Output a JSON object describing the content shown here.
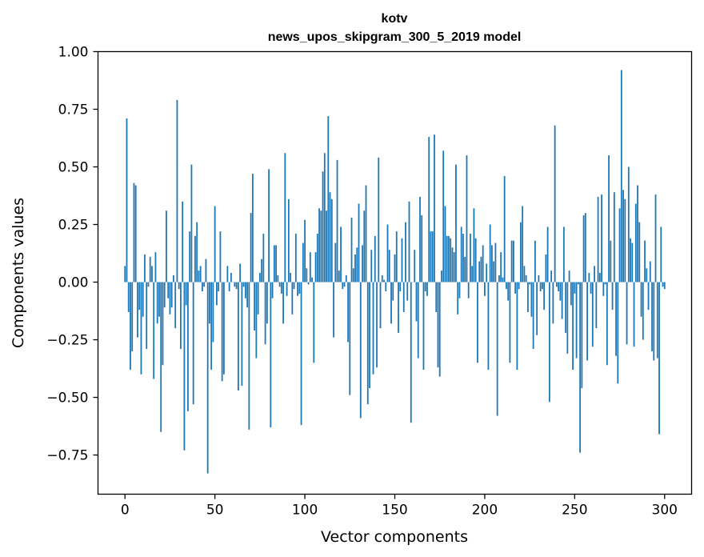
{
  "chart_data": {
    "type": "bar",
    "title": "kotv",
    "subtitle": "news_upos_skipgram_300_5_2019 model",
    "xlabel": "Vector components",
    "ylabel": "Components values",
    "xlim": [
      -15,
      315
    ],
    "ylim": [
      -0.92,
      1.0
    ],
    "xticks": [
      0,
      50,
      100,
      150,
      200,
      250,
      300
    ],
    "yticks": [
      -0.75,
      -0.5,
      -0.25,
      0.0,
      0.25,
      0.5,
      0.75,
      1.0
    ],
    "xtick_labels": [
      "0",
      "50",
      "100",
      "150",
      "200",
      "250",
      "300"
    ],
    "ytick_labels": [
      "−0.75",
      "−0.50",
      "−0.25",
      "0.00",
      "0.25",
      "0.50",
      "0.75",
      "1.00"
    ],
    "bar_color": "#1f77b4",
    "values": [
      0.07,
      0.71,
      -0.13,
      -0.38,
      -0.3,
      0.43,
      0.42,
      -0.24,
      -0.12,
      -0.4,
      -0.15,
      0.12,
      -0.29,
      -0.02,
      0.11,
      0.07,
      -0.42,
      0.13,
      -0.18,
      -0.15,
      -0.65,
      -0.36,
      -0.11,
      0.31,
      -0.07,
      -0.14,
      -0.11,
      0.03,
      -0.2,
      0.79,
      -0.03,
      -0.29,
      0.35,
      -0.73,
      -0.1,
      -0.56,
      0.22,
      0.51,
      -0.53,
      0.2,
      0.26,
      0.05,
      0.07,
      -0.04,
      -0.02,
      0.1,
      -0.83,
      -0.18,
      -0.38,
      -0.26,
      0.33,
      -0.1,
      -0.04,
      0.22,
      -0.43,
      -0.4,
      0.0,
      0.07,
      -0.04,
      0.04,
      0.0,
      -0.02,
      -0.03,
      -0.47,
      0.08,
      -0.45,
      -0.02,
      -0.07,
      -0.11,
      -0.64,
      0.3,
      0.47,
      -0.21,
      -0.33,
      -0.14,
      0.04,
      0.1,
      0.21,
      -0.27,
      -0.18,
      0.49,
      -0.63,
      -0.07,
      0.16,
      0.16,
      0.03,
      -0.02,
      -0.05,
      -0.18,
      0.56,
      -0.06,
      0.36,
      0.04,
      -0.14,
      -0.03,
      0.21,
      -0.06,
      -0.05,
      -0.62,
      0.17,
      0.27,
      0.06,
      -0.01,
      0.13,
      0.02,
      -0.35,
      0.13,
      0.21,
      0.32,
      0.31,
      0.48,
      0.56,
      0.31,
      0.72,
      0.39,
      0.36,
      -0.24,
      0.17,
      0.53,
      0.05,
      0.24,
      -0.03,
      -0.02,
      0.03,
      -0.26,
      -0.49,
      0.28,
      0.06,
      0.12,
      0.15,
      0.34,
      -0.59,
      0.16,
      0.31,
      0.42,
      -0.53,
      -0.46,
      0.14,
      -0.4,
      0.2,
      -0.37,
      0.54,
      -0.2,
      0.03,
      0.01,
      -0.04,
      0.25,
      0.14,
      -0.18,
      -0.08,
      0.12,
      0.22,
      -0.22,
      -0.04,
      0.19,
      -0.13,
      0.26,
      -0.08,
      0.35,
      -0.61,
      0.0,
      0.14,
      -0.17,
      -0.33,
      0.37,
      0.29,
      -0.38,
      -0.04,
      -0.06,
      0.63,
      0.22,
      0.22,
      0.64,
      -0.13,
      -0.37,
      -0.41,
      0.05,
      0.57,
      0.33,
      0.2,
      0.2,
      0.19,
      0.15,
      0.13,
      0.51,
      -0.14,
      -0.07,
      0.24,
      0.21,
      0.11,
      0.55,
      -0.07,
      0.21,
      0.07,
      0.32,
      0.19,
      -0.35,
      0.09,
      0.11,
      0.16,
      -0.06,
      0.08,
      -0.38,
      0.25,
      0.16,
      0.09,
      0.17,
      -0.58,
      0.03,
      0.13,
      0.02,
      0.46,
      -0.03,
      -0.08,
      -0.35,
      0.18,
      0.18,
      -0.05,
      -0.38,
      -0.03,
      0.26,
      0.33,
      0.07,
      0.03,
      -0.13,
      -0.01,
      -0.15,
      -0.29,
      0.18,
      -0.23,
      0.03,
      -0.04,
      -0.03,
      -0.12,
      0.12,
      0.24,
      -0.52,
      0.05,
      -0.18,
      0.68,
      -0.02,
      -0.04,
      -0.08,
      -0.16,
      0.24,
      -0.22,
      -0.31,
      0.05,
      -0.1,
      -0.38,
      -0.05,
      -0.33,
      -0.01,
      -0.74,
      -0.46,
      0.29,
      0.3,
      -0.34,
      0.04,
      -0.05,
      -0.28,
      0.07,
      -0.2,
      0.37,
      0.04,
      0.38,
      -0.06,
      -0.01,
      -0.36,
      0.55,
      0.18,
      -0.12,
      0.39,
      -0.32,
      -0.44,
      0.32,
      0.92,
      0.4,
      0.36,
      -0.27,
      0.5,
      0.19,
      0.17,
      -0.28,
      0.34,
      0.42,
      0.26,
      -0.15,
      -0.25,
      0.18,
      0.06,
      -0.12,
      0.09,
      -0.3,
      -0.34,
      0.38,
      -0.33,
      -0.66,
      0.24,
      -0.02,
      -0.03
    ]
  }
}
